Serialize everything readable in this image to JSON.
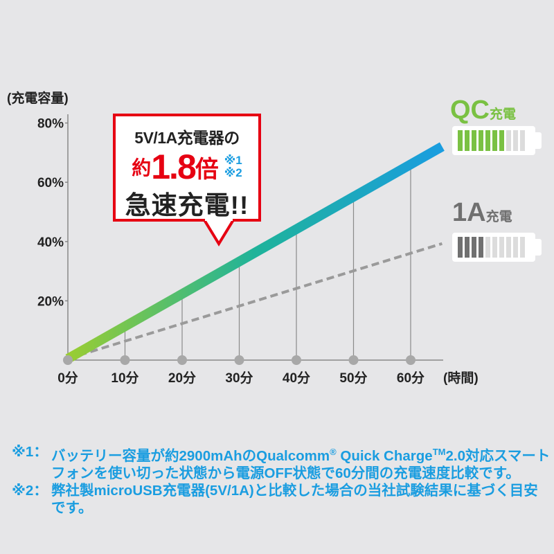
{
  "chart_data": {
    "type": "line",
    "ylabel": "(充電容量)",
    "xlabel": "(時間)",
    "x": [
      0,
      10,
      20,
      30,
      40,
      50,
      60
    ],
    "x_tick_labels": [
      "0分",
      "10分",
      "20分",
      "30分",
      "40分",
      "50分",
      "60分"
    ],
    "y_tick_labels": [
      "20%",
      "40%",
      "60%",
      "80%"
    ],
    "y_ticks": [
      20,
      40,
      60,
      80
    ],
    "xlim": [
      0,
      60
    ],
    "ylim": [
      0,
      80
    ],
    "grid": "vertical drop lines at each x",
    "series": [
      {
        "name": "QC充電",
        "values": [
          0,
          11,
          22,
          33,
          44,
          55,
          66
        ],
        "style": "solid gradient",
        "colors": [
          "#9acd32",
          "#1fb39a",
          "#1a9de0"
        ]
      },
      {
        "name": "1A充電",
        "values": [
          0,
          6,
          12,
          18,
          24,
          30,
          36
        ],
        "style": "dashed",
        "color": "#9a9a9a"
      }
    ]
  },
  "legend": {
    "qc": {
      "prefix": "QC",
      "suffix": "充電",
      "color": "#7ac143",
      "battery_level": 0.7
    },
    "one_a": {
      "prefix": "1A",
      "suffix": "充電",
      "color": "#707070",
      "battery_level": 0.4
    }
  },
  "callout": {
    "line1": "5V/1A充電器の",
    "approx": "約",
    "ratio": "1.8",
    "times": "倍",
    "note1": "※1",
    "note2": "※2",
    "line3": "急速充電!!",
    "border_color": "#e60012"
  },
  "footnotes": [
    {
      "mark": "※1：",
      "text": "バッテリー容量が約2900mAhのQualcomm",
      "sup1": "®",
      "text2": " Quick Charge",
      "sup2": "TM",
      "text3": "2.0対応スマートフォンを使い切った状態から電源OFF状態で60分間の充電速度比較です。"
    },
    {
      "mark": "※2：",
      "text": "弊社製microUSB充電器(5V/1A)と比較した場合の当社試験結果に基づく目安です。"
    }
  ]
}
